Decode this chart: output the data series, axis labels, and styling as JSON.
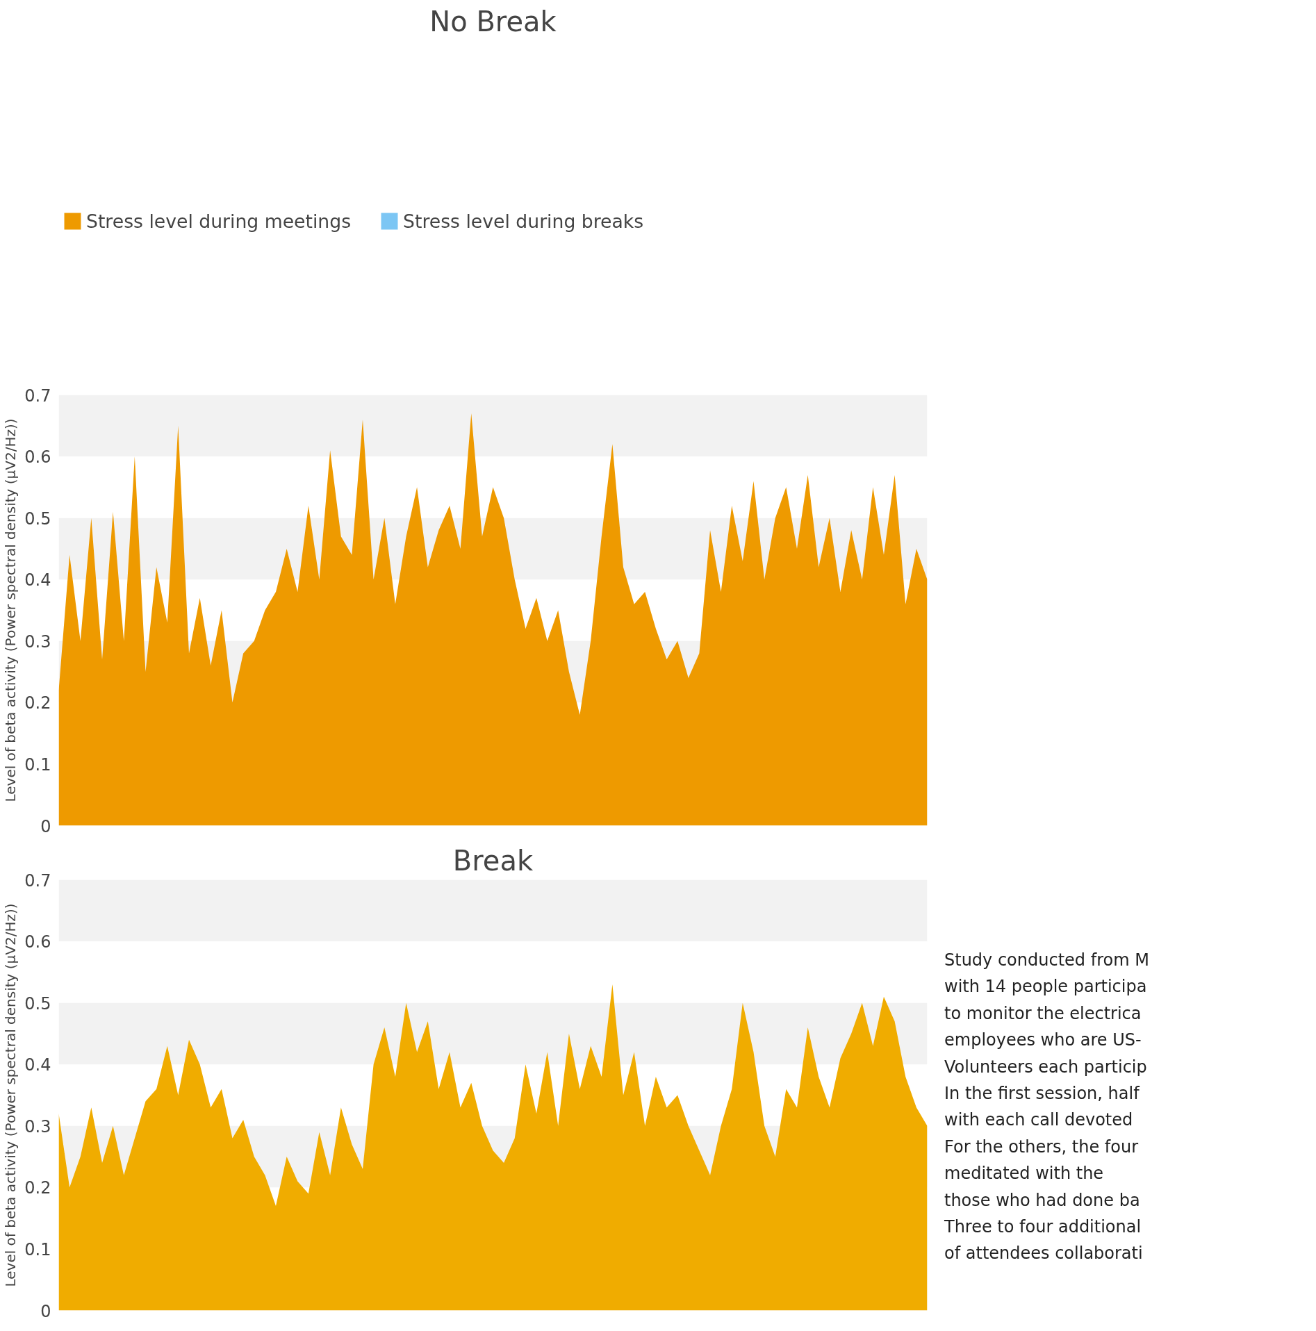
{
  "chart_data": [
    {
      "type": "area",
      "title": "No Break",
      "ylabel": "Level of beta activity (Power spectral density (μV2/Hz))",
      "categories": [
        null,
        null,
        null,
        null,
        null,
        null,
        null,
        null,
        null,
        null,
        null,
        null,
        null,
        null,
        null,
        null,
        null,
        null,
        null,
        null,
        null,
        null,
        null,
        null,
        null,
        null,
        null,
        null,
        null,
        null,
        null,
        null,
        null,
        null,
        null,
        null,
        null,
        null,
        null,
        null,
        null,
        null,
        null,
        null,
        null,
        null,
        null,
        null,
        null,
        null,
        null,
        null,
        null,
        null,
        null,
        null,
        null,
        null,
        null,
        null,
        null,
        null,
        null,
        null,
        null,
        null,
        null,
        null,
        null,
        null,
        null,
        null,
        null,
        null,
        null,
        null,
        null,
        null,
        null,
        null,
        null
      ],
      "series": [
        {
          "name": "Stress level during meetings",
          "color": "#ee9a00",
          "values": [
            0.22,
            0.44,
            0.3,
            0.5,
            0.27,
            0.51,
            0.3,
            0.6,
            0.25,
            0.42,
            0.33,
            0.65,
            0.28,
            0.37,
            0.26,
            0.35,
            0.2,
            0.28,
            0.3,
            0.35,
            0.38,
            0.45,
            0.38,
            0.52,
            0.4,
            0.61,
            0.47,
            0.44,
            0.66,
            0.4,
            0.5,
            0.36,
            0.47,
            0.55,
            0.42,
            0.48,
            0.52,
            0.45,
            0.67,
            0.47,
            0.55,
            0.5,
            0.4,
            0.32,
            0.37,
            0.3,
            0.35,
            0.25,
            0.18,
            0.3,
            0.47,
            0.62,
            0.42,
            0.36,
            0.38,
            0.32,
            0.27,
            0.3,
            0.24,
            0.28,
            0.48,
            0.38,
            0.52,
            0.43,
            0.56,
            0.4,
            0.5,
            0.55,
            0.45,
            0.57,
            0.42,
            0.5,
            0.38,
            0.48,
            0.4,
            0.55,
            0.44,
            0.57,
            0.36,
            0.45,
            0.4
          ]
        },
        {
          "name": "Stress level during breaks",
          "color": "#7cc6f4",
          "values": [
            null,
            null,
            null,
            null,
            null,
            null,
            null,
            null,
            null,
            null,
            null,
            null,
            null,
            null,
            null,
            null,
            null,
            null,
            null,
            null,
            null,
            null,
            null,
            null,
            null,
            null,
            null,
            null,
            null,
            null,
            null,
            null,
            null,
            null,
            null,
            null,
            null,
            null,
            null,
            null,
            null,
            null,
            null,
            null,
            null,
            null,
            null,
            null,
            null,
            null,
            null,
            null,
            null,
            null,
            null,
            null,
            null,
            null,
            null,
            null,
            null,
            null,
            null,
            null,
            null,
            null,
            null,
            null,
            null,
            null,
            null,
            null,
            null,
            null,
            null,
            null,
            null,
            null,
            null,
            null,
            null
          ]
        }
      ],
      "ylim": [
        0,
        0.7
      ],
      "yticks": [
        0,
        0.1,
        0.2,
        0.3,
        0.4,
        0.5,
        0.6,
        0.7
      ],
      "legend": "top",
      "bands": [
        {
          "axis": "y",
          "from": 0.6,
          "to": 0.7,
          "label": null,
          "color": "#f2f2f2"
        },
        {
          "axis": "y",
          "from": 0.4,
          "to": 0.5,
          "label": null,
          "color": "#f2f2f2"
        },
        {
          "axis": "y",
          "from": 0.2,
          "to": 0.3,
          "label": null,
          "color": "#f2f2f2"
        }
      ]
    },
    {
      "type": "area",
      "title": "Break",
      "ylabel": "Level of beta activity (Power spectral density (μV2/Hz))",
      "categories": [
        null,
        null,
        null,
        null,
        null,
        null,
        null,
        null,
        null,
        null,
        null,
        null,
        null,
        null,
        null,
        null,
        null,
        null,
        null,
        null,
        null,
        null,
        null,
        null,
        null,
        null,
        null,
        null,
        null,
        null,
        null,
        null,
        null,
        null,
        null,
        null,
        null,
        null,
        null,
        null,
        null,
        null,
        null,
        null,
        null,
        null,
        null,
        null,
        null,
        null,
        null,
        null,
        null,
        null,
        null,
        null,
        null,
        null,
        null,
        null,
        null,
        null,
        null,
        null,
        null,
        null,
        null,
        null,
        null,
        null,
        null,
        null,
        null,
        null,
        null,
        null,
        null,
        null,
        null,
        null,
        null
      ],
      "series": [
        {
          "color": "#f0ac00",
          "values": [
            0.32,
            0.2,
            0.25,
            0.33,
            0.24,
            0.3,
            0.22,
            0.28,
            0.34,
            0.36,
            0.43,
            0.35,
            0.44,
            0.4,
            0.33,
            0.36,
            0.28,
            0.31,
            0.25,
            0.22,
            0.17,
            0.25,
            0.21,
            0.19,
            0.29,
            0.22,
            0.33,
            0.27,
            0.23,
            0.4,
            0.46,
            0.38,
            0.5,
            0.42,
            0.47,
            0.36,
            0.42,
            0.33,
            0.37,
            0.3,
            0.26,
            0.24,
            0.28,
            0.4,
            0.32,
            0.42,
            0.3,
            0.45,
            0.36,
            0.43,
            0.38,
            0.53,
            0.35,
            0.42,
            0.3,
            0.38,
            0.33,
            0.35,
            0.3,
            0.26,
            0.22,
            0.3,
            0.36,
            0.5,
            0.42,
            0.3,
            0.25,
            0.36,
            0.33,
            0.46,
            0.38,
            0.33,
            0.41,
            0.45,
            0.5,
            0.43,
            0.51,
            0.47,
            0.38,
            0.33,
            0.3
          ]
        }
      ],
      "ylim": [
        0,
        0.7
      ],
      "yticks": [
        0,
        0.1,
        0.2,
        0.3,
        0.4,
        0.5,
        0.6,
        0.7
      ],
      "bands": [
        {
          "axis": "y",
          "from": 0.6,
          "to": 0.7,
          "label": null,
          "color": "#f2f2f2"
        },
        {
          "axis": "y",
          "from": 0.4,
          "to": 0.5,
          "label": null,
          "color": "#f2f2f2"
        },
        {
          "axis": "y",
          "from": 0.2,
          "to": 0.3,
          "label": null,
          "color": "#f2f2f2"
        }
      ],
      "annotations": [
        "Study conducted from M",
        "with 14 people participa",
        "to monitor the electrica",
        "employees who are US-",
        "Volunteers each particip",
        "In the first session, half",
        "with each call devoted",
        "For the others, the four",
        "meditated with the",
        "those who had done ba",
        "Three to four additional",
        "of attendees collaborati"
      ]
    }
  ]
}
